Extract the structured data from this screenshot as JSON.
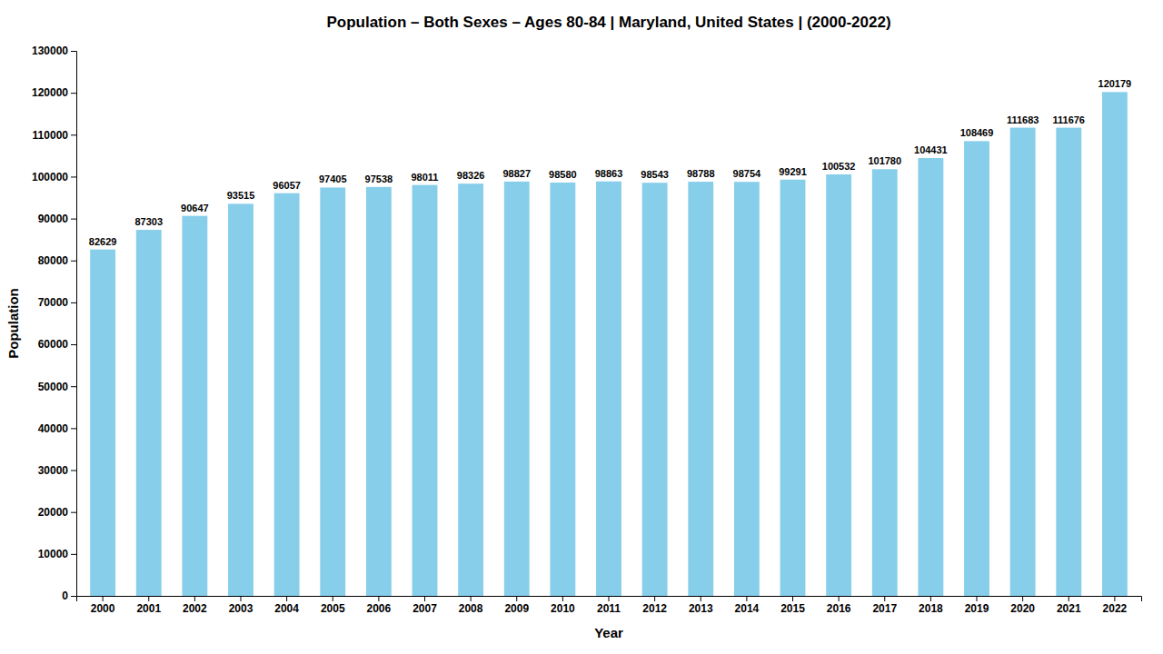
{
  "chart_data": {
    "type": "bar",
    "title": "Population – Both Sexes – Ages 80-84 | Maryland, United States |   (2000-2022)",
    "xlabel": "Year",
    "ylabel": "Population",
    "categories": [
      "2000",
      "2001",
      "2002",
      "2003",
      "2004",
      "2005",
      "2006",
      "2007",
      "2008",
      "2009",
      "2010",
      "2011",
      "2012",
      "2013",
      "2014",
      "2015",
      "2016",
      "2017",
      "2018",
      "2019",
      "2020",
      "2021",
      "2022"
    ],
    "values": [
      82629,
      87303,
      90647,
      93515,
      96057,
      97405,
      97538,
      98011,
      98326,
      98827,
      98580,
      98863,
      98543,
      98788,
      98754,
      99291,
      100532,
      101780,
      104431,
      108469,
      111683,
      111676,
      120179
    ],
    "color": "#87CEEB",
    "ylim": [
      0,
      130000
    ],
    "yticks": [
      0,
      10000,
      20000,
      30000,
      40000,
      50000,
      60000,
      70000,
      80000,
      90000,
      100000,
      110000,
      120000,
      130000
    ],
    "data_labels": true,
    "grid": false
  }
}
